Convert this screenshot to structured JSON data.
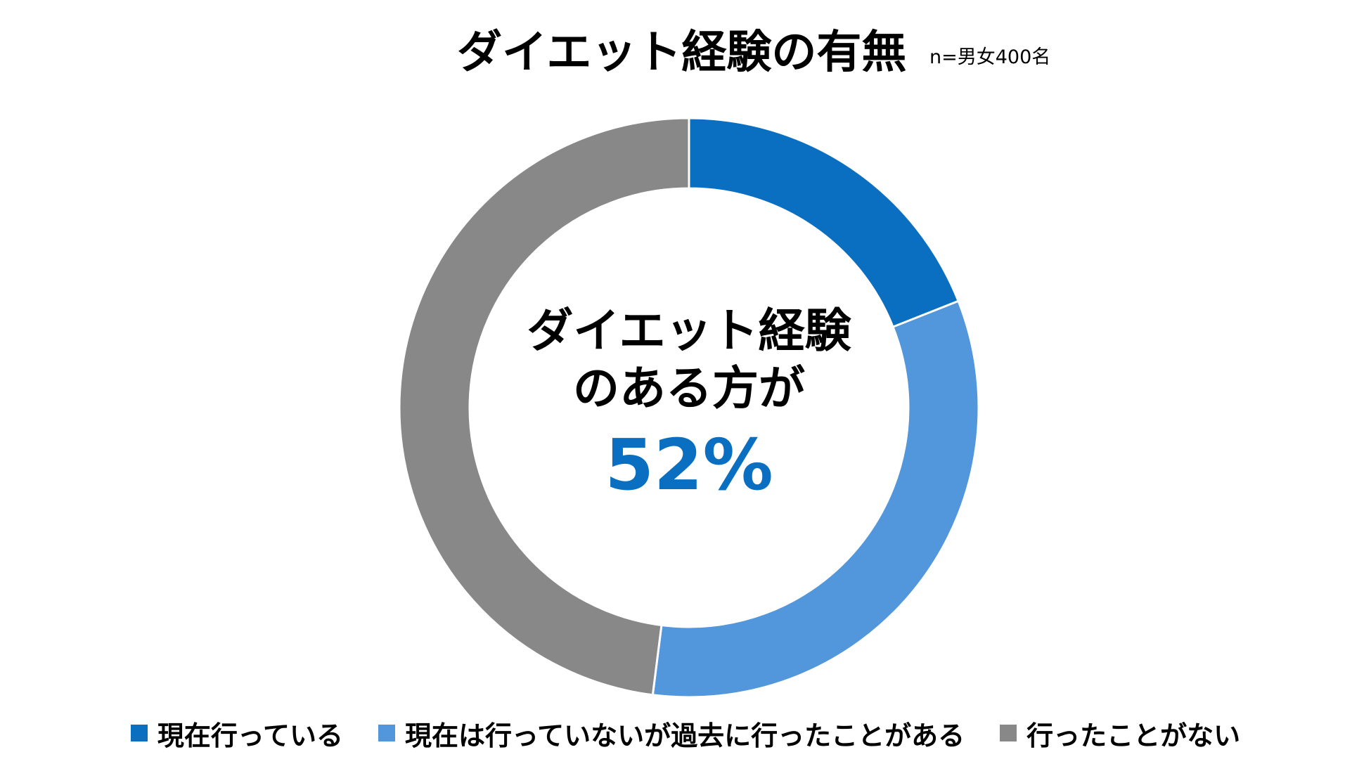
{
  "header": {
    "title": "ダイエット経験の有無",
    "subtitle": "n=男女400名"
  },
  "center": {
    "line1": "ダイエット経験",
    "line2": "のある方が",
    "value": "52%",
    "value_color": "#0a6fc0"
  },
  "chart_data": {
    "type": "pie",
    "categories": [
      "現在行っている",
      "現在は行っていないが過去に行ったことがある",
      "行ったことがない"
    ],
    "values": [
      19,
      33,
      48
    ],
    "colors": [
      "#0a6fc0",
      "#5296db",
      "#888888"
    ],
    "legend_position": "bottom",
    "title": "ダイエット経験の有無"
  }
}
